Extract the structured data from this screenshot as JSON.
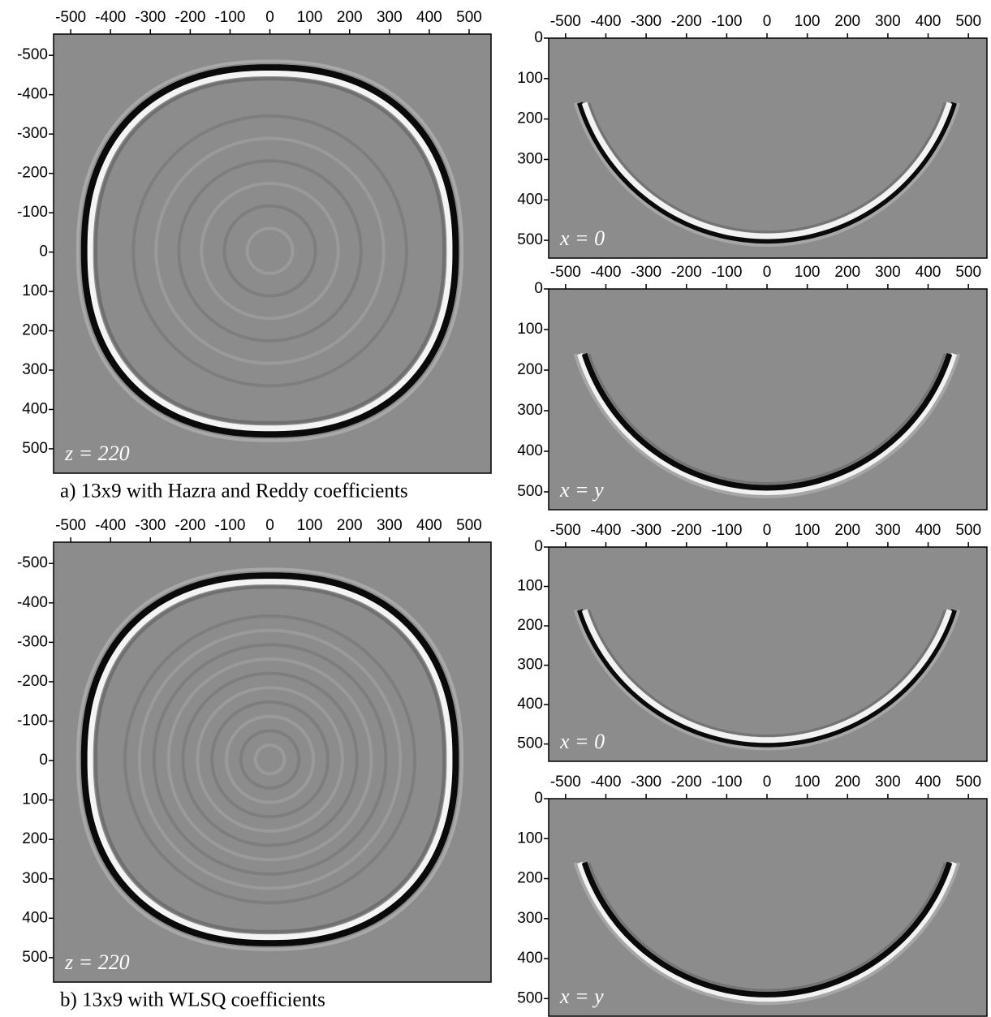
{
  "chart_data": [
    {
      "type": "image",
      "caption": "a) 13x9 with Hazra and Reddy coefficients",
      "annotation": "z = 220",
      "xlim": [
        -543,
        555
      ],
      "ylim": [
        -554,
        562
      ],
      "xticks": [
        -500,
        -400,
        -300,
        -200,
        -100,
        0,
        100,
        200,
        300,
        400,
        500
      ],
      "yticks": [
        -500,
        -400,
        -300,
        -200,
        -100,
        0,
        100,
        200,
        300,
        400,
        500
      ]
    },
    {
      "type": "image",
      "caption": "b) 13x9 with WLSQ coefficients",
      "annotation": "z = 220",
      "xlim": [
        -543,
        555
      ],
      "ylim": [
        -554,
        562
      ],
      "xticks": [
        -500,
        -400,
        -300,
        -200,
        -100,
        0,
        100,
        200,
        300,
        400,
        500
      ],
      "yticks": [
        -500,
        -400,
        -300,
        -200,
        -100,
        0,
        100,
        200,
        300,
        400,
        500
      ]
    },
    {
      "type": "image",
      "annotation": "x = 0",
      "xlim": [
        -542,
        546
      ],
      "ylim": [
        0,
        544
      ],
      "xticks": [
        -500,
        -400,
        -300,
        -200,
        -100,
        0,
        100,
        200,
        300,
        400,
        500
      ],
      "yticks": [
        0,
        100,
        200,
        300,
        400,
        500
      ]
    },
    {
      "type": "image",
      "annotation": "x = y",
      "xlim": [
        -542,
        546
      ],
      "ylim": [
        0,
        544
      ],
      "xticks": [
        -500,
        -400,
        -300,
        -200,
        -100,
        0,
        100,
        200,
        300,
        400,
        500
      ],
      "yticks": [
        0,
        100,
        200,
        300,
        400,
        500
      ]
    },
    {
      "type": "image",
      "annotation": "x = 0",
      "xlim": [
        -542,
        546
      ],
      "ylim": [
        0,
        544
      ],
      "xticks": [
        -500,
        -400,
        -300,
        -200,
        -100,
        0,
        100,
        200,
        300,
        400,
        500
      ],
      "yticks": [
        0,
        100,
        200,
        300,
        400,
        500
      ]
    },
    {
      "type": "image",
      "annotation": "x = y",
      "xlim": [
        -542,
        546
      ],
      "ylim": [
        0,
        544
      ],
      "xticks": [
        -500,
        -400,
        -300,
        -200,
        -100,
        0,
        100,
        200,
        300,
        400,
        500
      ],
      "yticks": [
        0,
        100,
        200,
        300,
        400,
        500
      ]
    }
  ]
}
